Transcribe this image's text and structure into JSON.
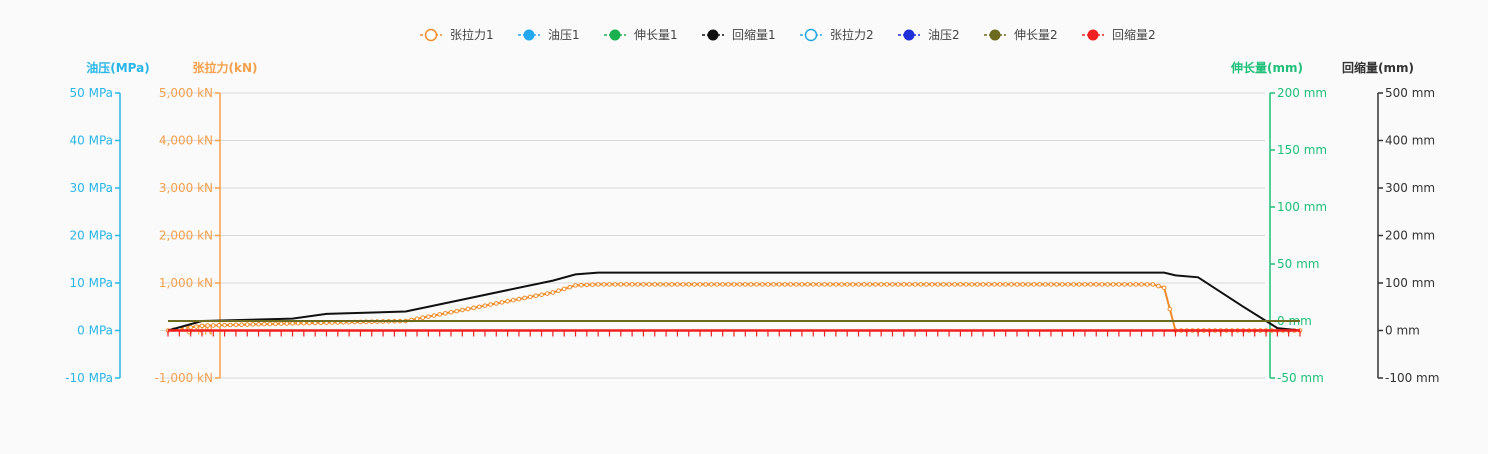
{
  "legend": [
    {
      "label": "张拉力1",
      "color": "#f08c28",
      "marker": "hollow"
    },
    {
      "label": "油压1",
      "color": "#21a8f0",
      "marker": "solid"
    },
    {
      "label": "伸长量1",
      "color": "#1ab050",
      "marker": "solid"
    },
    {
      "label": "回缩量1",
      "color": "#111111",
      "marker": "solid"
    },
    {
      "label": "张拉力2",
      "color": "#21a8e0",
      "marker": "hollow"
    },
    {
      "label": "油压2",
      "color": "#2030d8",
      "marker": "solid"
    },
    {
      "label": "伸长量2",
      "color": "#6b6a1e",
      "marker": "solid"
    },
    {
      "label": "回缩量2",
      "color": "#f02020",
      "marker": "solid"
    }
  ],
  "axes": {
    "pressure": {
      "title": "油压(MPa)",
      "color": "#29b6e8",
      "ticks": [
        "50 MPa",
        "40 MPa",
        "30 MPa",
        "20 MPa",
        "10 MPa",
        "0 MPa",
        "-10 MPa"
      ]
    },
    "force": {
      "title": "张拉力(kN)",
      "color": "#f5a04a",
      "ticks": [
        "5,000 kN",
        "4,000 kN",
        "3,000 kN",
        "2,000 kN",
        "1,000 kN",
        "0 kN",
        "-1,000 kN"
      ]
    },
    "elongation": {
      "title": "伸长量(mm)",
      "color": "#1ec07a",
      "ticks": [
        "200 mm",
        "150 mm",
        "100 mm",
        "50 mm",
        "0 mm",
        "-50 mm"
      ]
    },
    "retraction": {
      "title": "回缩量(mm)",
      "color": "#333333",
      "ticks": [
        "500 mm",
        "400 mm",
        "300 mm",
        "200 mm",
        "100 mm",
        "0 mm",
        "-100 mm"
      ]
    }
  },
  "chart_data": {
    "type": "line",
    "x_count": 100,
    "ylim_force": [
      -1000,
      5000
    ],
    "ylim_pressure": [
      -10,
      50
    ],
    "ylim_elongation": [
      -50,
      200
    ],
    "ylim_retraction": [
      -100,
      500
    ],
    "series": [
      {
        "name": "张拉力1",
        "axis": "force",
        "color": "#f08c28",
        "style": "hollow-markers",
        "points": [
          [
            0,
            0
          ],
          [
            3,
            100
          ],
          [
            11,
            150
          ],
          [
            21,
            200
          ],
          [
            34,
            800
          ],
          [
            36,
            950
          ],
          [
            38,
            970
          ],
          [
            87,
            970
          ],
          [
            88,
            900
          ],
          [
            89,
            0
          ],
          [
            100,
            0
          ]
        ]
      },
      {
        "name": "回缩量1",
        "axis": "retraction",
        "color": "#111111",
        "style": "line",
        "points": [
          [
            0,
            0
          ],
          [
            3,
            20
          ],
          [
            11,
            25
          ],
          [
            14,
            35
          ],
          [
            21,
            40
          ],
          [
            24,
            55
          ],
          [
            34,
            105
          ],
          [
            36,
            118
          ],
          [
            38,
            122
          ],
          [
            88,
            122
          ],
          [
            89,
            116
          ],
          [
            91,
            112
          ],
          [
            95,
            50
          ],
          [
            98,
            5
          ],
          [
            100,
            0
          ]
        ]
      },
      {
        "name": "伸长量2",
        "axis": "elongation",
        "color": "#6b6a1e",
        "style": "line",
        "points": [
          [
            0,
            0
          ],
          [
            100,
            0
          ]
        ]
      },
      {
        "name": "回缩量2",
        "axis": "retraction",
        "color": "#f02020",
        "style": "ticked-line",
        "points": [
          [
            0,
            0
          ],
          [
            100,
            0
          ]
        ]
      }
    ]
  }
}
